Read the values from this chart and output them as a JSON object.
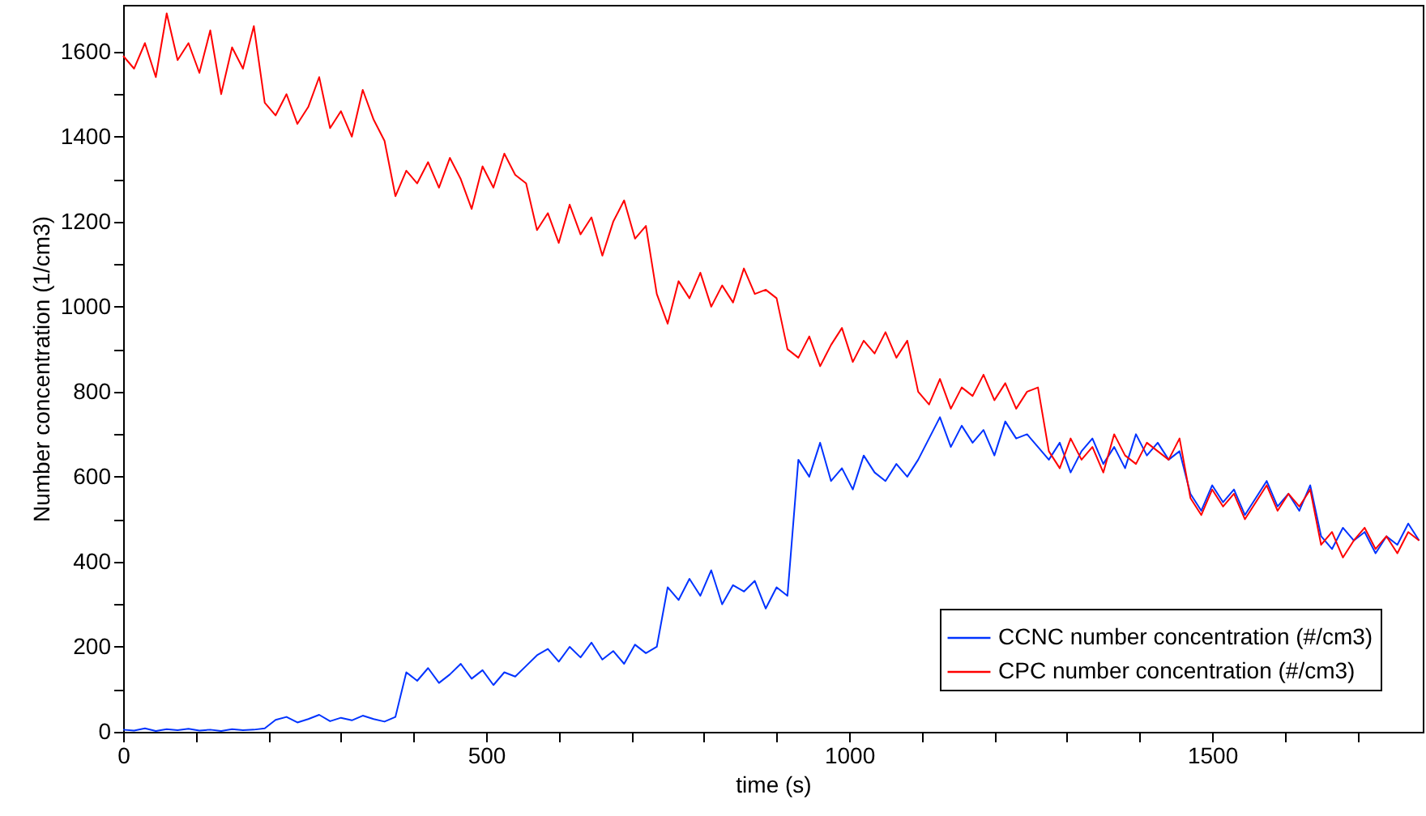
{
  "chart_data": {
    "type": "line",
    "xlabel": "time (s)",
    "ylabel": "Number concentration (1/cm3)",
    "x": [
      0,
      15,
      30,
      45,
      60,
      75,
      90,
      105,
      120,
      135,
      150,
      165,
      180,
      195,
      210,
      225,
      240,
      255,
      270,
      285,
      300,
      315,
      330,
      345,
      360,
      375,
      390,
      405,
      420,
      435,
      450,
      465,
      480,
      495,
      510,
      525,
      540,
      555,
      570,
      585,
      600,
      615,
      630,
      645,
      660,
      675,
      690,
      705,
      720,
      735,
      750,
      765,
      780,
      795,
      810,
      825,
      840,
      855,
      870,
      885,
      900,
      915,
      930,
      945,
      960,
      975,
      990,
      1005,
      1020,
      1035,
      1050,
      1065,
      1080,
      1095,
      1110,
      1125,
      1140,
      1155,
      1170,
      1185,
      1200,
      1215,
      1230,
      1245,
      1260,
      1275,
      1290,
      1305,
      1320,
      1335,
      1350,
      1365,
      1380,
      1395,
      1410,
      1425,
      1440,
      1455,
      1470,
      1485,
      1500,
      1515,
      1530,
      1545,
      1560,
      1575,
      1590,
      1605,
      1620,
      1635,
      1650,
      1665,
      1680,
      1695,
      1710,
      1725,
      1740,
      1755,
      1770,
      1785
    ],
    "series": [
      {
        "name": "CCNC number concentration (#/cm3)",
        "color": "#0033ff",
        "values": [
          5,
          3,
          8,
          2,
          6,
          4,
          7,
          3,
          5,
          2,
          6,
          4,
          5,
          8,
          28,
          35,
          22,
          30,
          40,
          25,
          33,
          27,
          38,
          30,
          24,
          35,
          140,
          120,
          150,
          115,
          135,
          160,
          125,
          145,
          110,
          140,
          130,
          155,
          180,
          195,
          165,
          200,
          175,
          210,
          170,
          190,
          160,
          205,
          185,
          200,
          340,
          310,
          360,
          320,
          380,
          300,
          345,
          330,
          355,
          290,
          340,
          320,
          640,
          600,
          680,
          590,
          620,
          570,
          650,
          610,
          590,
          630,
          600,
          640,
          690,
          740,
          670,
          720,
          680,
          710,
          650,
          730,
          690,
          700,
          670,
          640,
          680,
          610,
          660,
          690,
          630,
          670,
          620,
          700,
          650,
          680,
          640,
          660,
          560,
          520,
          580,
          540,
          570,
          510,
          550,
          590,
          530,
          560,
          520,
          580,
          460,
          430,
          480,
          450,
          470,
          420,
          460,
          440,
          490,
          450
        ]
      },
      {
        "name": "CPC number concentration (#/cm3)",
        "color": "#ff0000",
        "values": [
          1590,
          1560,
          1620,
          1540,
          1690,
          1580,
          1620,
          1550,
          1650,
          1500,
          1610,
          1560,
          1660,
          1480,
          1450,
          1500,
          1430,
          1470,
          1540,
          1420,
          1460,
          1400,
          1510,
          1440,
          1390,
          1260,
          1320,
          1290,
          1340,
          1280,
          1350,
          1300,
          1230,
          1330,
          1280,
          1360,
          1310,
          1290,
          1180,
          1220,
          1150,
          1240,
          1170,
          1210,
          1120,
          1200,
          1250,
          1160,
          1190,
          1030,
          960,
          1060,
          1020,
          1080,
          1000,
          1050,
          1010,
          1090,
          1030,
          1040,
          1020,
          900,
          880,
          930,
          860,
          910,
          950,
          870,
          920,
          890,
          940,
          880,
          920,
          800,
          770,
          830,
          760,
          810,
          790,
          840,
          780,
          820,
          760,
          800,
          810,
          660,
          620,
          690,
          640,
          670,
          610,
          700,
          650,
          630,
          680,
          660,
          640,
          690,
          550,
          510,
          570,
          530,
          560,
          500,
          540,
          580,
          520,
          560,
          530,
          570,
          440,
          470,
          410,
          450,
          480,
          430,
          460,
          420,
          470,
          450
        ]
      }
    ],
    "xlim": [
      0,
      1790
    ],
    "xticks": [
      0,
      {
        "value": 100,
        "label": null
      },
      {
        "value": 200,
        "label": null
      },
      {
        "value": 300,
        "label": null
      },
      {
        "value": 400,
        "label": null
      },
      500,
      {
        "value": 600,
        "label": null
      },
      {
        "value": 700,
        "label": null
      },
      {
        "value": 800,
        "label": null
      },
      {
        "value": 900,
        "label": null
      },
      1000,
      {
        "value": 1100,
        "label": null
      },
      {
        "value": 1200,
        "label": null
      },
      {
        "value": 1300,
        "label": null
      },
      {
        "value": 1400,
        "label": null
      },
      1500,
      {
        "value": 1600,
        "label": null
      },
      {
        "value": 1700,
        "label": null
      }
    ],
    "ylim": [
      0,
      1710
    ],
    "yticks": [
      0,
      {
        "value": 100,
        "label": null
      },
      200,
      {
        "value": 300,
        "label": null
      },
      400,
      {
        "value": 500,
        "label": null
      },
      600,
      {
        "value": 700,
        "label": null
      },
      800,
      {
        "value": 900,
        "label": null
      },
      1000,
      {
        "value": 1100,
        "label": null
      },
      1200,
      {
        "value": 1300,
        "label": null
      },
      1400,
      {
        "value": 1500,
        "label": null
      },
      1600
    ],
    "grid": false,
    "legend": "bottom right",
    "marker": "none",
    "line_style": "solid"
  }
}
